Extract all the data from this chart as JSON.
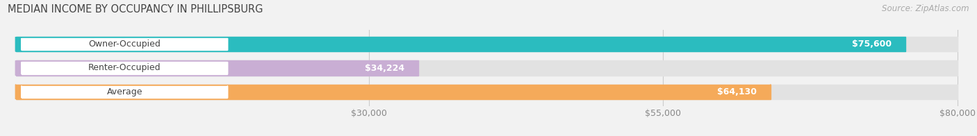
{
  "title": "MEDIAN INCOME BY OCCUPANCY IN PHILLIPSBURG",
  "source": "Source: ZipAtlas.com",
  "categories": [
    "Owner-Occupied",
    "Renter-Occupied",
    "Average"
  ],
  "values": [
    75600,
    34224,
    64130
  ],
  "bar_colors": [
    "#2bbcbf",
    "#c9aed4",
    "#f5aa5a"
  ],
  "value_labels": [
    "$75,600",
    "$34,224",
    "$64,130"
  ],
  "xlim": [
    0,
    80000
  ],
  "xmin": 0,
  "xmax": 80000,
  "xticks": [
    30000,
    55000,
    80000
  ],
  "xtick_labels": [
    "$30,000",
    "$55,000",
    "$80,000"
  ],
  "bar_height": 0.62,
  "background_color": "#f2f2f2",
  "bar_bg_color": "#e2e2e2",
  "title_fontsize": 10.5,
  "source_fontsize": 8.5,
  "label_fontsize": 9,
  "value_fontsize": 9
}
